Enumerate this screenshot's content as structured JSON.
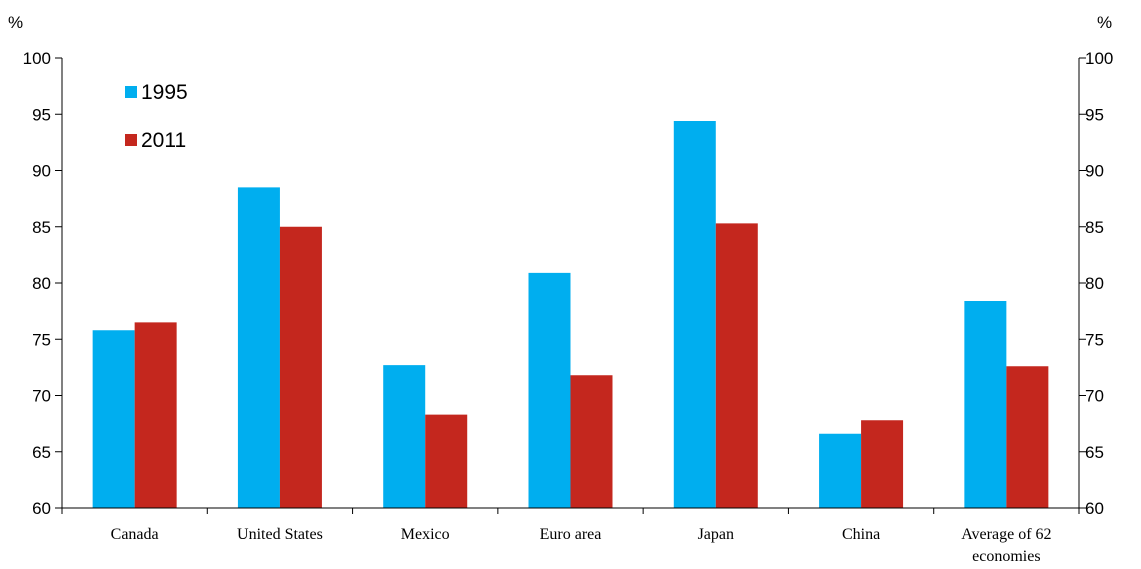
{
  "chart_data": {
    "type": "bar",
    "title": "",
    "xlabel": "",
    "ylabel": "",
    "y_unit_left": "%",
    "y_unit_right": "%",
    "ylim": [
      60,
      100
    ],
    "y_ticks": [
      "60",
      "65",
      "70",
      "75",
      "80",
      "85",
      "90",
      "95",
      "100"
    ],
    "categories": [
      [
        "Canada"
      ],
      [
        "United States"
      ],
      [
        "Mexico"
      ],
      [
        "Euro area"
      ],
      [
        "Japan"
      ],
      [
        "China"
      ],
      [
        "Average of 62",
        "economies"
      ]
    ],
    "series": [
      {
        "name": "1995",
        "color": "#00AEEF",
        "values": [
          75.8,
          88.5,
          72.7,
          80.9,
          94.4,
          66.6,
          78.4
        ]
      },
      {
        "name": "2011",
        "color": "#C4271E",
        "values": [
          76.5,
          85.0,
          68.3,
          71.8,
          85.3,
          67.8,
          72.6
        ]
      }
    ],
    "grid": false,
    "legend_position": "top-left",
    "secondary_axis": true
  }
}
